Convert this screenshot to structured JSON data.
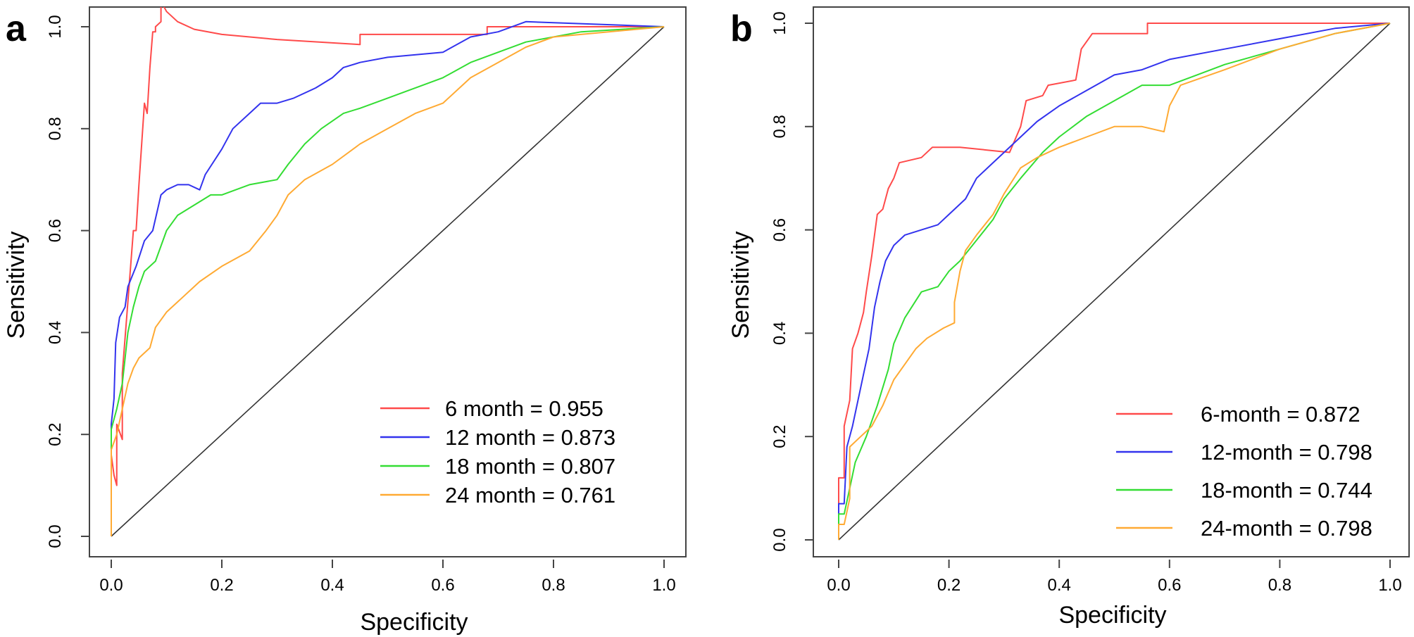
{
  "chart_data": [
    {
      "panel": "a",
      "type": "line",
      "xlabel": "Specificity",
      "ylabel": "Sensitivity",
      "xlim": [
        0,
        1
      ],
      "ylim": [
        0,
        1
      ],
      "xticks": [
        "0.0",
        "0.2",
        "0.4",
        "0.6",
        "0.8",
        "1.0"
      ],
      "yticks": [
        "0.0",
        "0.2",
        "0.4",
        "0.6",
        "0.8",
        "1.0"
      ],
      "legend_position": "bottom-right",
      "reference_line": [
        [
          0,
          0
        ],
        [
          1,
          1
        ]
      ],
      "series": [
        {
          "name": "6 month = 0.955",
          "color": "#ff4a4a",
          "points": [
            [
              0,
              0
            ],
            [
              0,
              0.16
            ],
            [
              0.005,
              0.12
            ],
            [
              0.01,
              0.1
            ],
            [
              0.01,
              0.22
            ],
            [
              0.02,
              0.19
            ],
            [
              0.02,
              0.32
            ],
            [
              0.03,
              0.46
            ],
            [
              0.035,
              0.53
            ],
            [
              0.04,
              0.6
            ],
            [
              0.045,
              0.6
            ],
            [
              0.05,
              0.69
            ],
            [
              0.055,
              0.77
            ],
            [
              0.06,
              0.85
            ],
            [
              0.065,
              0.83
            ],
            [
              0.07,
              0.92
            ],
            [
              0.075,
              0.99
            ],
            [
              0.08,
              0.99
            ],
            [
              0.08,
              1.0
            ],
            [
              0.09,
              1.01
            ],
            [
              0.09,
              1.05
            ],
            [
              0.1,
              1.03
            ],
            [
              0.12,
              1.01
            ],
            [
              0.15,
              0.995
            ],
            [
              0.2,
              0.985
            ],
            [
              0.3,
              0.975
            ],
            [
              0.45,
              0.965
            ],
            [
              0.45,
              0.985
            ],
            [
              0.68,
              0.985
            ],
            [
              0.68,
              1.0
            ],
            [
              1.0,
              1.0
            ]
          ]
        },
        {
          "name": "12 month = 0.873",
          "color": "#3333ee",
          "points": [
            [
              0,
              0
            ],
            [
              0,
              0.22
            ],
            [
              0.005,
              0.27
            ],
            [
              0.008,
              0.38
            ],
            [
              0.015,
              0.43
            ],
            [
              0.025,
              0.45
            ],
            [
              0.03,
              0.49
            ],
            [
              0.045,
              0.53
            ],
            [
              0.06,
              0.58
            ],
            [
              0.075,
              0.6
            ],
            [
              0.09,
              0.67
            ],
            [
              0.1,
              0.68
            ],
            [
              0.12,
              0.69
            ],
            [
              0.14,
              0.69
            ],
            [
              0.16,
              0.68
            ],
            [
              0.17,
              0.71
            ],
            [
              0.2,
              0.76
            ],
            [
              0.22,
              0.8
            ],
            [
              0.25,
              0.83
            ],
            [
              0.27,
              0.85
            ],
            [
              0.3,
              0.85
            ],
            [
              0.33,
              0.86
            ],
            [
              0.37,
              0.88
            ],
            [
              0.4,
              0.9
            ],
            [
              0.42,
              0.92
            ],
            [
              0.45,
              0.93
            ],
            [
              0.5,
              0.94
            ],
            [
              0.6,
              0.95
            ],
            [
              0.65,
              0.98
            ],
            [
              0.7,
              0.99
            ],
            [
              0.75,
              1.01
            ],
            [
              1.0,
              1.0
            ]
          ]
        },
        {
          "name": "18 month = 0.807",
          "color": "#33dd33",
          "points": [
            [
              0,
              0
            ],
            [
              0,
              0.21
            ],
            [
              0.01,
              0.25
            ],
            [
              0.02,
              0.3
            ],
            [
              0.03,
              0.4
            ],
            [
              0.04,
              0.45
            ],
            [
              0.05,
              0.49
            ],
            [
              0.06,
              0.52
            ],
            [
              0.08,
              0.54
            ],
            [
              0.1,
              0.6
            ],
            [
              0.12,
              0.63
            ],
            [
              0.15,
              0.65
            ],
            [
              0.18,
              0.67
            ],
            [
              0.2,
              0.67
            ],
            [
              0.25,
              0.69
            ],
            [
              0.3,
              0.7
            ],
            [
              0.32,
              0.73
            ],
            [
              0.35,
              0.77
            ],
            [
              0.38,
              0.8
            ],
            [
              0.42,
              0.83
            ],
            [
              0.45,
              0.84
            ],
            [
              0.5,
              0.86
            ],
            [
              0.55,
              0.88
            ],
            [
              0.6,
              0.9
            ],
            [
              0.65,
              0.93
            ],
            [
              0.7,
              0.95
            ],
            [
              0.75,
              0.97
            ],
            [
              0.8,
              0.98
            ],
            [
              0.85,
              0.99
            ],
            [
              1.0,
              1.0
            ]
          ]
        },
        {
          "name": "24 month = 0.761",
          "color": "#ffaa33",
          "points": [
            [
              0,
              0
            ],
            [
              0,
              0.17
            ],
            [
              0.01,
              0.2
            ],
            [
              0.02,
              0.25
            ],
            [
              0.03,
              0.3
            ],
            [
              0.04,
              0.33
            ],
            [
              0.05,
              0.35
            ],
            [
              0.07,
              0.37
            ],
            [
              0.08,
              0.41
            ],
            [
              0.1,
              0.44
            ],
            [
              0.13,
              0.47
            ],
            [
              0.16,
              0.5
            ],
            [
              0.2,
              0.53
            ],
            [
              0.25,
              0.56
            ],
            [
              0.28,
              0.6
            ],
            [
              0.3,
              0.63
            ],
            [
              0.32,
              0.67
            ],
            [
              0.35,
              0.7
            ],
            [
              0.4,
              0.73
            ],
            [
              0.45,
              0.77
            ],
            [
              0.5,
              0.8
            ],
            [
              0.55,
              0.83
            ],
            [
              0.6,
              0.85
            ],
            [
              0.65,
              0.9
            ],
            [
              0.7,
              0.93
            ],
            [
              0.75,
              0.96
            ],
            [
              0.8,
              0.98
            ],
            [
              0.9,
              0.99
            ],
            [
              1.0,
              1.0
            ]
          ]
        }
      ]
    },
    {
      "panel": "b",
      "type": "line",
      "xlabel": "Specificity",
      "ylabel": "Sensitivity",
      "xlim": [
        0,
        1
      ],
      "ylim": [
        0,
        1
      ],
      "xticks": [
        "0.0",
        "0.2",
        "0.4",
        "0.6",
        "0.8",
        "1.0"
      ],
      "yticks": [
        "0.0",
        "0.2",
        "0.4",
        "0.6",
        "0.8",
        "1.0"
      ],
      "legend_position": "bottom-right",
      "reference_line": [
        [
          0,
          0
        ],
        [
          1,
          1
        ]
      ],
      "series": [
        {
          "name": "6-month = 0.872",
          "color": "#ff4a4a",
          "points": [
            [
              0,
              0
            ],
            [
              0,
              0.12
            ],
            [
              0.01,
              0.12
            ],
            [
              0.01,
              0.22
            ],
            [
              0.02,
              0.27
            ],
            [
              0.025,
              0.37
            ],
            [
              0.035,
              0.4
            ],
            [
              0.045,
              0.44
            ],
            [
              0.05,
              0.48
            ],
            [
              0.06,
              0.55
            ],
            [
              0.07,
              0.63
            ],
            [
              0.08,
              0.64
            ],
            [
              0.09,
              0.68
            ],
            [
              0.1,
              0.7
            ],
            [
              0.11,
              0.73
            ],
            [
              0.15,
              0.74
            ],
            [
              0.17,
              0.76
            ],
            [
              0.22,
              0.76
            ],
            [
              0.31,
              0.75
            ],
            [
              0.33,
              0.8
            ],
            [
              0.34,
              0.85
            ],
            [
              0.37,
              0.86
            ],
            [
              0.38,
              0.88
            ],
            [
              0.43,
              0.89
            ],
            [
              0.44,
              0.95
            ],
            [
              0.46,
              0.98
            ],
            [
              0.56,
              0.98
            ],
            [
              0.56,
              1.0
            ],
            [
              1.0,
              1.0
            ]
          ]
        },
        {
          "name": "12-month = 0.798",
          "color": "#3333ee",
          "points": [
            [
              0,
              0
            ],
            [
              0,
              0.07
            ],
            [
              0.01,
              0.07
            ],
            [
              0.015,
              0.18
            ],
            [
              0.025,
              0.22
            ],
            [
              0.035,
              0.27
            ],
            [
              0.045,
              0.32
            ],
            [
              0.055,
              0.37
            ],
            [
              0.065,
              0.45
            ],
            [
              0.075,
              0.5
            ],
            [
              0.085,
              0.54
            ],
            [
              0.1,
              0.57
            ],
            [
              0.12,
              0.59
            ],
            [
              0.15,
              0.6
            ],
            [
              0.18,
              0.61
            ],
            [
              0.2,
              0.63
            ],
            [
              0.23,
              0.66
            ],
            [
              0.25,
              0.7
            ],
            [
              0.27,
              0.72
            ],
            [
              0.3,
              0.75
            ],
            [
              0.33,
              0.78
            ],
            [
              0.36,
              0.81
            ],
            [
              0.4,
              0.84
            ],
            [
              0.45,
              0.87
            ],
            [
              0.5,
              0.9
            ],
            [
              0.55,
              0.91
            ],
            [
              0.6,
              0.93
            ],
            [
              0.7,
              0.95
            ],
            [
              0.8,
              0.97
            ],
            [
              0.9,
              0.99
            ],
            [
              1.0,
              1.0
            ]
          ]
        },
        {
          "name": "18-month = 0.744",
          "color": "#33dd33",
          "points": [
            [
              0,
              0
            ],
            [
              0,
              0.05
            ],
            [
              0.01,
              0.05
            ],
            [
              0.02,
              0.1
            ],
            [
              0.03,
              0.15
            ],
            [
              0.05,
              0.2
            ],
            [
              0.07,
              0.26
            ],
            [
              0.09,
              0.33
            ],
            [
              0.1,
              0.38
            ],
            [
              0.12,
              0.43
            ],
            [
              0.15,
              0.48
            ],
            [
              0.18,
              0.49
            ],
            [
              0.2,
              0.52
            ],
            [
              0.22,
              0.54
            ],
            [
              0.25,
              0.58
            ],
            [
              0.28,
              0.62
            ],
            [
              0.3,
              0.66
            ],
            [
              0.33,
              0.7
            ],
            [
              0.37,
              0.75
            ],
            [
              0.4,
              0.78
            ],
            [
              0.45,
              0.82
            ],
            [
              0.5,
              0.85
            ],
            [
              0.55,
              0.88
            ],
            [
              0.6,
              0.88
            ],
            [
              0.65,
              0.9
            ],
            [
              0.7,
              0.92
            ],
            [
              0.8,
              0.95
            ],
            [
              0.9,
              0.98
            ],
            [
              1.0,
              1.0
            ]
          ]
        },
        {
          "name": "24-month = 0.798",
          "color": "#ffaa33",
          "points": [
            [
              0,
              0
            ],
            [
              0,
              0.03
            ],
            [
              0.01,
              0.03
            ],
            [
              0.02,
              0.08
            ],
            [
              0.02,
              0.18
            ],
            [
              0.04,
              0.2
            ],
            [
              0.06,
              0.22
            ],
            [
              0.08,
              0.26
            ],
            [
              0.1,
              0.31
            ],
            [
              0.12,
              0.34
            ],
            [
              0.14,
              0.37
            ],
            [
              0.16,
              0.39
            ],
            [
              0.19,
              0.41
            ],
            [
              0.21,
              0.42
            ],
            [
              0.21,
              0.46
            ],
            [
              0.22,
              0.52
            ],
            [
              0.23,
              0.56
            ],
            [
              0.25,
              0.59
            ],
            [
              0.28,
              0.63
            ],
            [
              0.3,
              0.67
            ],
            [
              0.33,
              0.72
            ],
            [
              0.36,
              0.74
            ],
            [
              0.4,
              0.76
            ],
            [
              0.45,
              0.78
            ],
            [
              0.5,
              0.8
            ],
            [
              0.55,
              0.8
            ],
            [
              0.59,
              0.79
            ],
            [
              0.6,
              0.84
            ],
            [
              0.62,
              0.88
            ],
            [
              0.7,
              0.91
            ],
            [
              0.8,
              0.95
            ],
            [
              0.9,
              0.98
            ],
            [
              1.0,
              1.0
            ]
          ]
        }
      ]
    }
  ]
}
